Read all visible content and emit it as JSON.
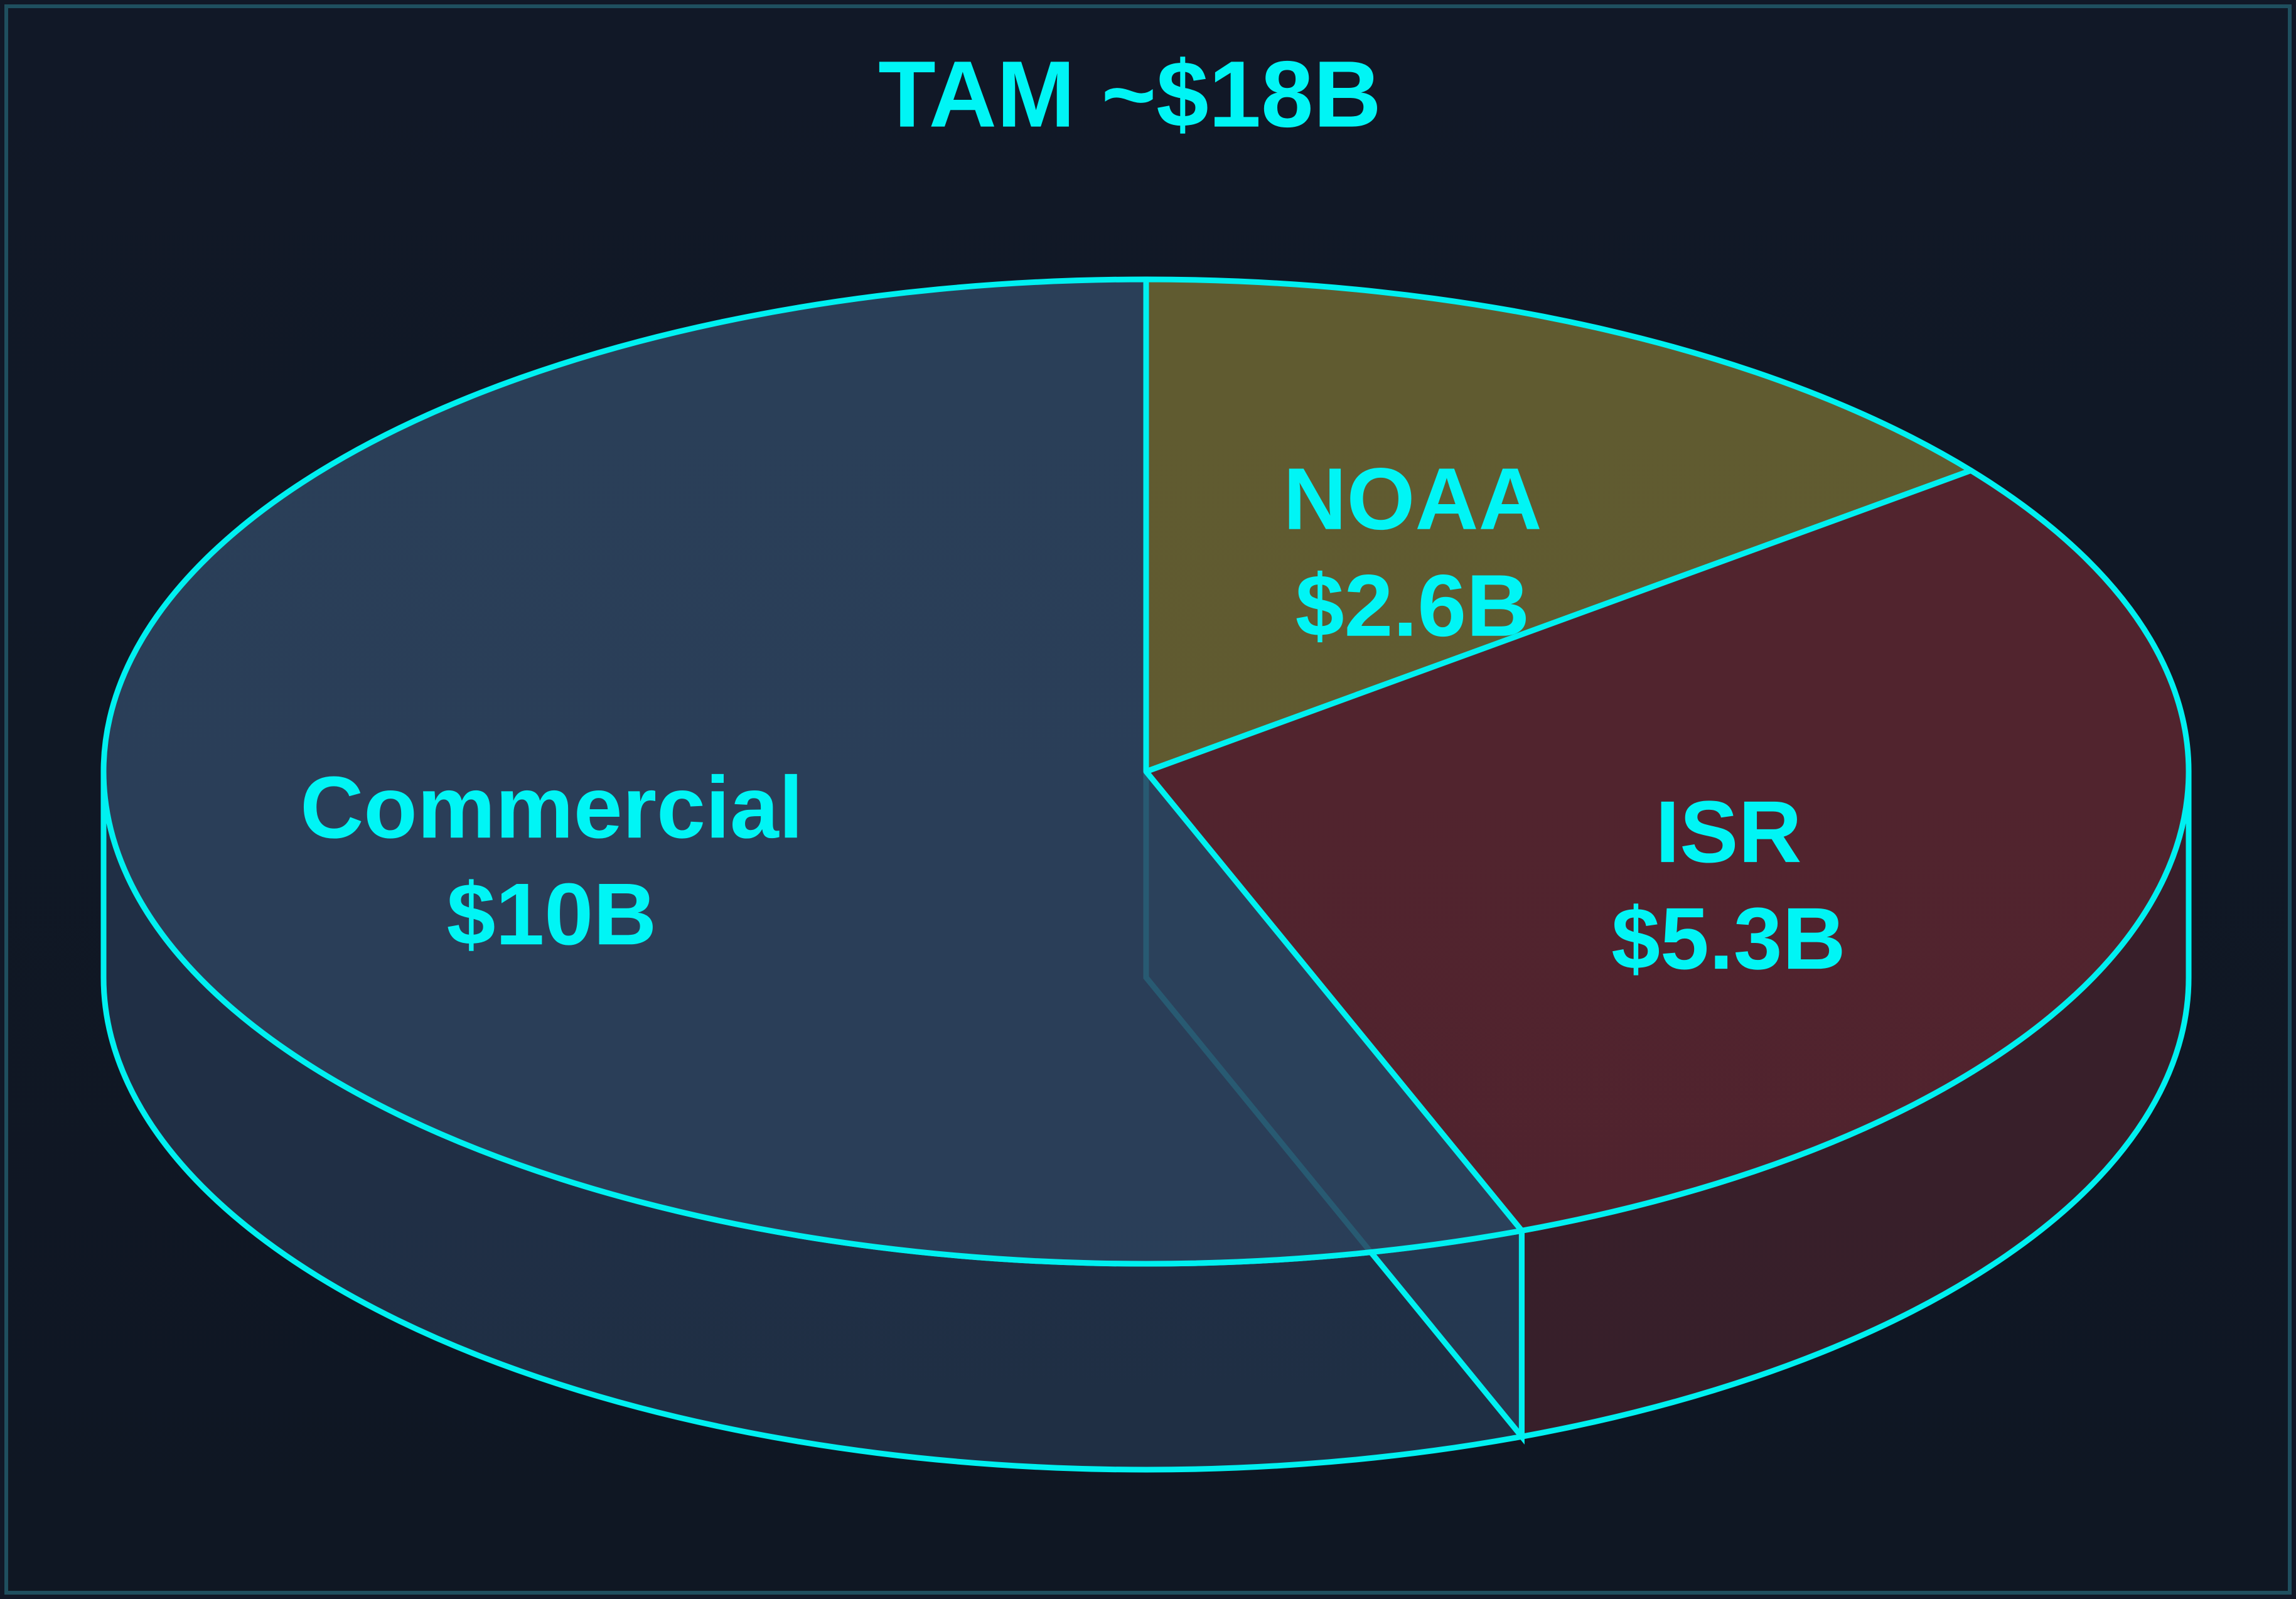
{
  "chart_data": {
    "type": "pie3d",
    "title": "TAM ~$18B",
    "categories": [
      "NOAA",
      "ISR",
      "Commercial"
    ],
    "values": [
      2.6,
      5.3,
      10
    ],
    "value_labels": [
      "$2.6B",
      "$5.3B",
      "$10B"
    ],
    "colors": [
      "#6b6432",
      "#5a2630",
      "#2d4460"
    ],
    "edge_color": "#00f0f0"
  }
}
